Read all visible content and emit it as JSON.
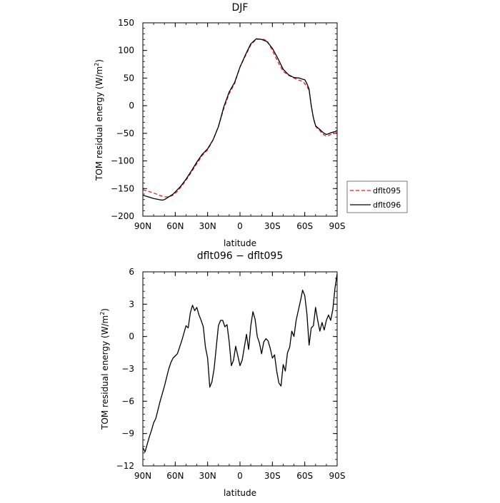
{
  "chart_data": [
    {
      "type": "line",
      "title": "DJF",
      "xlabel": "latitude",
      "ylabel": "TOM residual energy (W/m",
      "ylabel_sup": "2",
      "ylabel_tail": ")",
      "xlim": [
        90,
        -90
      ],
      "ylim": [
        -200,
        150
      ],
      "xticks": [
        90,
        60,
        30,
        0,
        -30,
        -60,
        -90
      ],
      "xtick_labels": [
        "90N",
        "60N",
        "30N",
        "0",
        "30S",
        "60S",
        "90S"
      ],
      "yticks": [
        150,
        100,
        50,
        0,
        -50,
        -100,
        -150,
        -200
      ],
      "ytick_labels": [
        "150",
        "100",
        "50",
        "0",
        "−50",
        "−100",
        "−150",
        "−200"
      ],
      "legend_position": "right",
      "series": [
        {
          "name": "dflt095",
          "color": "#e41a1c",
          "dash": "dashed",
          "x": [
            90,
            85,
            80,
            75,
            70,
            66,
            62,
            58,
            55,
            50,
            45,
            40,
            35,
            30,
            25,
            20,
            15,
            10,
            5,
            0,
            -5,
            -10,
            -15,
            -20,
            -25,
            -30,
            -35,
            -40,
            -45,
            -50,
            -55,
            -58,
            -60,
            -62,
            -64,
            -66,
            -68,
            -70,
            -72,
            -74,
            -76,
            -78,
            -80,
            -82,
            -84,
            -86,
            -88,
            -90
          ],
          "y": [
            -152,
            -155,
            -158,
            -162,
            -165,
            -165,
            -162,
            -155,
            -148,
            -135,
            -120,
            -105,
            -90,
            -80,
            -62,
            -38,
            -5,
            22,
            40,
            70,
            90,
            110,
            120,
            121,
            118,
            100,
            80,
            62,
            55,
            50,
            46,
            44,
            40,
            35,
            28,
            0,
            -22,
            -37,
            -42,
            -45,
            -50,
            -53,
            -55,
            -54,
            -52,
            -51,
            -50,
            -48
          ]
        },
        {
          "name": "dflt096",
          "color": "#000000",
          "dash": "solid",
          "x": [
            90,
            85,
            80,
            75,
            72,
            70,
            66,
            62,
            58,
            55,
            50,
            45,
            40,
            35,
            30,
            25,
            20,
            15,
            10,
            5,
            0,
            -5,
            -10,
            -15,
            -20,
            -25,
            -30,
            -35,
            -40,
            -45,
            -50,
            -55,
            -58,
            -60,
            -62,
            -64,
            -66,
            -68,
            -70,
            -72,
            -74,
            -76,
            -78,
            -80,
            -82,
            -84,
            -86,
            -88,
            -90
          ],
          "y": [
            -162,
            -165,
            -168,
            -170,
            -171,
            -170,
            -165,
            -160,
            -152,
            -146,
            -133,
            -118,
            -102,
            -88,
            -78,
            -62,
            -38,
            -2,
            25,
            42,
            70,
            92,
            112,
            121,
            120,
            116,
            104,
            86,
            66,
            56,
            51,
            50,
            48,
            47,
            40,
            30,
            0,
            -22,
            -36,
            -40,
            -43,
            -47,
            -50,
            -52,
            -51,
            -49,
            -48,
            -47,
            -45
          ]
        }
      ]
    },
    {
      "type": "line",
      "title": "dflt096 − dflt095",
      "xlabel": "latitude",
      "ylabel": "TOM residual energy (W/m",
      "ylabel_sup": "2",
      "ylabel_tail": ")",
      "xlim": [
        90,
        -90
      ],
      "ylim": [
        -12,
        6
      ],
      "xticks": [
        90,
        60,
        30,
        0,
        -30,
        -60,
        -90
      ],
      "xtick_labels": [
        "90N",
        "60N",
        "30N",
        "0",
        "30S",
        "60S",
        "90S"
      ],
      "yticks": [
        6,
        3,
        0,
        -3,
        -6,
        -9,
        -12
      ],
      "ytick_labels": [
        "6",
        "3",
        "0",
        "−3",
        "−6",
        "−9",
        "−12"
      ],
      "series": [
        {
          "name": "",
          "color": "#000000",
          "dash": "solid",
          "x": [
            90,
            88,
            86,
            84,
            82,
            80,
            78,
            76,
            74,
            72,
            70,
            68,
            66,
            64,
            62,
            60,
            58,
            56,
            54,
            52,
            50,
            48,
            46,
            44,
            42,
            40,
            38,
            36,
            34,
            32,
            30,
            28,
            26,
            24,
            22,
            20,
            18,
            16,
            14,
            12,
            10,
            8,
            6,
            4,
            2,
            0,
            -2,
            -4,
            -6,
            -8,
            -10,
            -12,
            -14,
            -16,
            -18,
            -20,
            -22,
            -24,
            -26,
            -28,
            -30,
            -32,
            -34,
            -36,
            -38,
            -40,
            -42,
            -44,
            -46,
            -48,
            -50,
            -52,
            -54,
            -56,
            -58,
            -60,
            -62,
            -64,
            -66,
            -68,
            -70,
            -72,
            -74,
            -76,
            -78,
            -80,
            -82,
            -84,
            -86,
            -88,
            -90
          ],
          "y": [
            -10.3,
            -10.7,
            -10.0,
            -9.3,
            -8.7,
            -8.0,
            -7.6,
            -6.8,
            -6.0,
            -5.3,
            -4.6,
            -3.8,
            -3.0,
            -2.4,
            -2.0,
            -1.8,
            -1.6,
            -1.0,
            -0.4,
            0.3,
            1.0,
            0.8,
            2.2,
            2.9,
            2.4,
            2.7,
            2.0,
            1.5,
            0.9,
            -1.0,
            -2.0,
            -4.7,
            -4.2,
            -3.0,
            -1.0,
            1.0,
            1.5,
            1.5,
            0.9,
            1.1,
            -0.5,
            -2.7,
            -2.2,
            -0.9,
            -1.8,
            -2.7,
            -2.2,
            -1.0,
            0.2,
            -1.2,
            1.0,
            2.3,
            1.6,
            0.0,
            -0.6,
            -1.6,
            -0.5,
            -0.2,
            -0.4,
            -1.1,
            -2.0,
            -1.7,
            -3.2,
            -4.3,
            -4.6,
            -2.6,
            -3.2,
            -1.5,
            -1.0,
            0.5,
            0.0,
            1.5,
            2.4,
            3.3,
            4.3,
            3.8,
            2.1,
            -0.8,
            0.8,
            1.0,
            2.7,
            1.5,
            0.5,
            1.3,
            0.6,
            1.5,
            2.0,
            1.5,
            2.5,
            4.5,
            5.8
          ]
        }
      ]
    }
  ]
}
